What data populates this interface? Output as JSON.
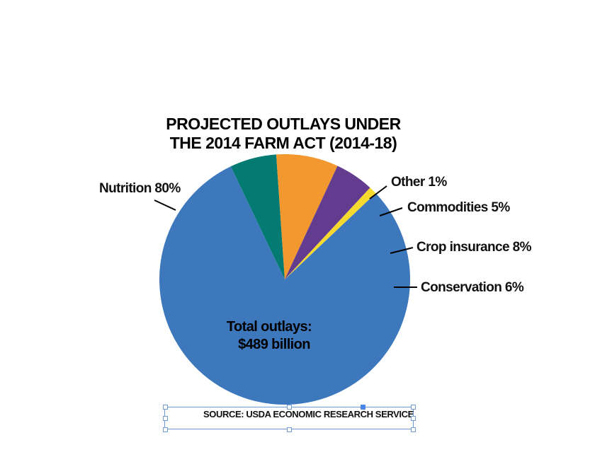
{
  "chart_data": {
    "type": "pie",
    "title_lines": [
      "PROJECTED OUTLAYS UNDER",
      "THE 2014 FARM ACT (2014-18)"
    ],
    "slices": [
      {
        "name": "Nutrition",
        "label": "Nutrition 80%",
        "value": 80,
        "color": "#3d78bd"
      },
      {
        "name": "Conservation",
        "label": "Conservation 6%",
        "value": 6,
        "color": "#047b72"
      },
      {
        "name": "Crop insurance",
        "label": "Crop insurance 8%",
        "value": 8,
        "color": "#f2982f"
      },
      {
        "name": "Commodities",
        "label": "Commodities 5%",
        "value": 5,
        "color": "#633c8f"
      },
      {
        "name": "Other",
        "label": "Other 1%",
        "value": 1,
        "color": "#f6d92e"
      }
    ],
    "center_label_lines": [
      "Total outlays:",
      "$489 billion"
    ],
    "source": "SOURCE: USDA ECONOMIC RESEARCH SERVICE"
  }
}
